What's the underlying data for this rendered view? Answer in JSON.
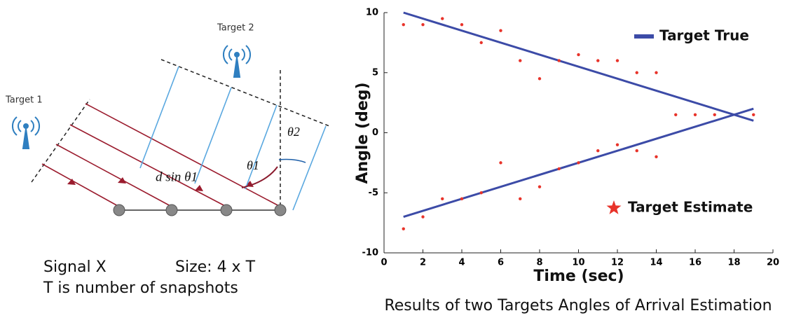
{
  "diagram": {
    "target_1": "Target 1",
    "target_2": "Target 2",
    "d_sin": "d sin θ1",
    "theta_1": "θ1",
    "theta_2": "θ2",
    "signal": "Signal X",
    "size": "Size: 4 x T",
    "snapshots": "T is number of snapshots"
  },
  "chart_data": {
    "type": "line",
    "xlabel": "Time (sec)",
    "ylabel": "Angle (deg)",
    "xlim": [
      0,
      20
    ],
    "xticks": [
      0,
      2,
      4,
      6,
      8,
      10,
      12,
      14,
      16,
      18,
      20
    ],
    "ylim": [
      -10,
      10
    ],
    "yticks": [
      -10,
      -5,
      0,
      5,
      10
    ],
    "series": [
      {
        "name": "Target True",
        "color": "#3c4ba7",
        "style": "line",
        "x": [
          1,
          19
        ],
        "values": [
          10,
          1
        ]
      },
      {
        "color": "#3c4ba7",
        "style": "line",
        "x": [
          1,
          19
        ],
        "values": [
          -7,
          2
        ]
      },
      {
        "name": "Target Estimate",
        "color": "#e8332a",
        "style": "points",
        "x": [
          1,
          2,
          3,
          4,
          5,
          6,
          7,
          8,
          9,
          10,
          11,
          12,
          13,
          14,
          15,
          16,
          17,
          19,
          1,
          2,
          3,
          4,
          5,
          6,
          7,
          8,
          9,
          10,
          11,
          12,
          13,
          14
        ],
        "values": [
          9,
          9,
          9.5,
          9,
          7.5,
          8.5,
          6,
          4.5,
          6,
          6.5,
          6,
          6,
          5,
          5,
          1.5,
          1.5,
          1.5,
          1.5,
          -8,
          -7,
          -5.5,
          -5.5,
          -5,
          -2.5,
          -5.5,
          -4.5,
          -3,
          -2.5,
          -1.5,
          -1,
          -1.5,
          -2
        ]
      }
    ]
  },
  "caption": "Results of two Targets Angles of Arrival Estimation"
}
